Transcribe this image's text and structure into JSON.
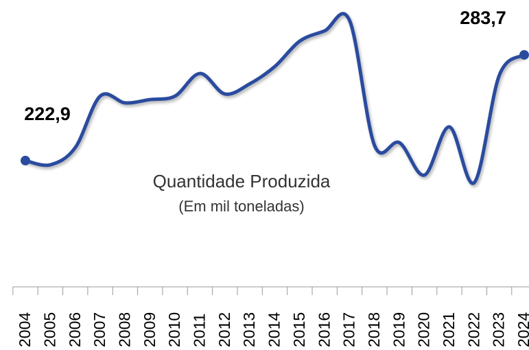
{
  "chart_data": {
    "type": "line",
    "title": "Quantidade Produzida",
    "subtitle": "(Em mil toneladas)",
    "categories": [
      "2004",
      "2005",
      "2006",
      "2007",
      "2008",
      "2009",
      "2010",
      "2011",
      "2012",
      "2013",
      "2014",
      "2015",
      "2016",
      "2017",
      "2018",
      "2019",
      "2020",
      "2021",
      "2022",
      "2023",
      "2024"
    ],
    "series": [
      {
        "name": "Quantidade Produzida",
        "color": "#2b4c9e",
        "values": [
          222.9,
          220.5,
          230.4,
          260.0,
          256.1,
          258.0,
          260.0,
          273.0,
          261.2,
          267.1,
          277.0,
          291.6,
          297.5,
          303.4,
          231.6,
          233.2,
          214.6,
          242.3,
          210.3,
          271.9,
          283.7
        ],
        "value_labels": [
          "222,9",
          null,
          null,
          null,
          null,
          null,
          null,
          null,
          null,
          null,
          null,
          null,
          null,
          null,
          null,
          null,
          null,
          null,
          null,
          null,
          "283,7"
        ]
      }
    ]
  }
}
